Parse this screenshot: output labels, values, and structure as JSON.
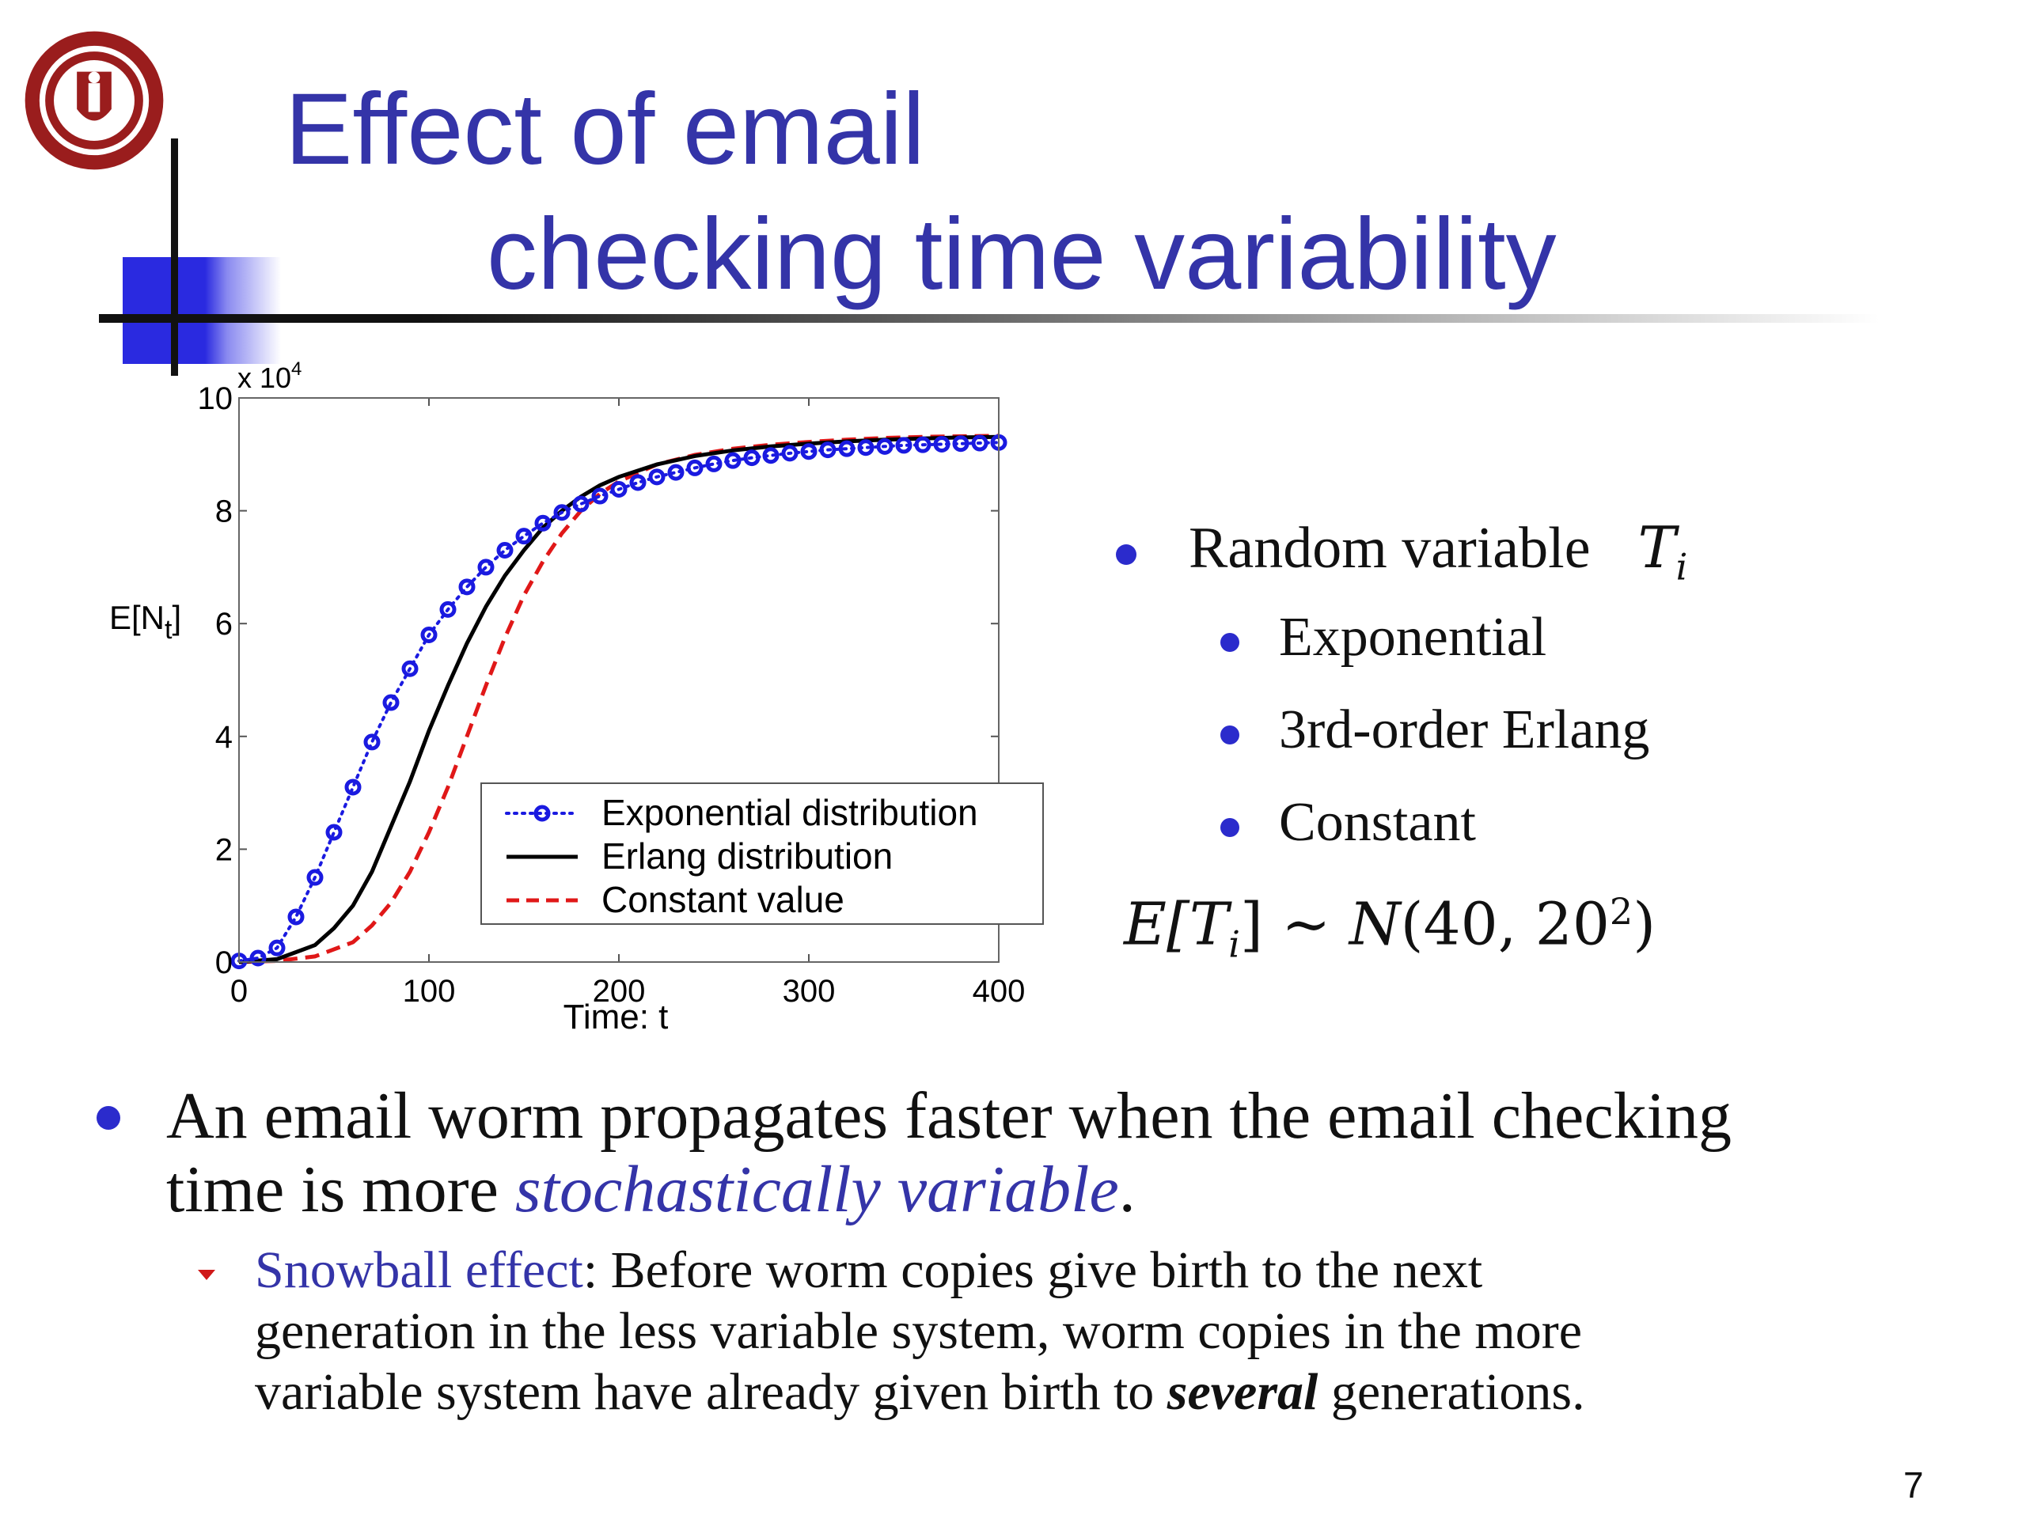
{
  "slide": {
    "title_line1": "Effect of email",
    "title_line2": "checking time variability",
    "page_number": "7"
  },
  "right_panel": {
    "random_variable_label": "Random variable",
    "random_variable_symbol": "T",
    "random_variable_subscript": "i",
    "items": [
      "Exponential",
      "3rd-order Erlang",
      "Constant"
    ],
    "formula": {
      "lhs_E": "E[",
      "lhs_T": "T",
      "lhs_sub": "i",
      "lhs_close": "]",
      "sim": "∼",
      "dist": "N",
      "args": "(40, 20",
      "sup": "2",
      "close": ")"
    }
  },
  "main_bullet": {
    "line1": "An email worm propagates faster when the email checking",
    "line2_prefix": "time is more ",
    "line2_emph": "stochastically variable",
    "line2_suffix": "."
  },
  "sub_bullet": {
    "label": "Snowball effect",
    "line1_rest": ": Before worm copies give birth to the next",
    "line2": "generation in the less variable system, worm copies in the more",
    "line3_prefix": "variable system have already given birth to ",
    "line3_emph": "several",
    "line3_suffix": " generations."
  },
  "colors": {
    "title": "#3434a8",
    "bullet_dot": "#2b2bcc",
    "exponential": "#1a1ae0",
    "erlang": "#000000",
    "constant": "#e01818",
    "sub_marker": "#d01818"
  },
  "chart_data": {
    "type": "line",
    "xlabel": "Time: t",
    "ylabel": "E[N",
    "ylabel_sub": "t",
    "ylabel_close": "]",
    "y_multiplier": "x 10",
    "y_multiplier_exp": "4",
    "xlim": [
      0,
      400
    ],
    "ylim": [
      0,
      10
    ],
    "xticks": [
      0,
      100,
      200,
      300,
      400
    ],
    "yticks": [
      0,
      2,
      4,
      6,
      8,
      10
    ],
    "legend_position": "lower-right",
    "series": [
      {
        "name": "Exponential distribution",
        "style": "dotted-circles",
        "color": "#1a1ae0",
        "x": [
          0,
          10,
          20,
          30,
          40,
          50,
          60,
          70,
          80,
          90,
          100,
          110,
          120,
          130,
          140,
          150,
          160,
          170,
          180,
          190,
          200,
          210,
          220,
          230,
          240,
          250,
          260,
          270,
          280,
          290,
          300,
          310,
          320,
          330,
          340,
          350,
          360,
          370,
          380,
          390,
          400
        ],
        "y": [
          0.02,
          0.07,
          0.25,
          0.8,
          1.5,
          2.3,
          3.1,
          3.9,
          4.6,
          5.2,
          5.8,
          6.25,
          6.65,
          7.0,
          7.3,
          7.55,
          7.78,
          7.97,
          8.12,
          8.26,
          8.38,
          8.5,
          8.6,
          8.68,
          8.76,
          8.83,
          8.89,
          8.94,
          8.98,
          9.02,
          9.05,
          9.08,
          9.1,
          9.12,
          9.14,
          9.16,
          9.17,
          9.18,
          9.19,
          9.2,
          9.21
        ]
      },
      {
        "name": "Erlang distribution",
        "style": "solid",
        "color": "#000000",
        "x": [
          0,
          20,
          40,
          50,
          60,
          70,
          80,
          90,
          100,
          110,
          120,
          130,
          140,
          150,
          160,
          170,
          180,
          190,
          200,
          220,
          240,
          260,
          280,
          300,
          320,
          340,
          360,
          380,
          400
        ],
        "y": [
          0.0,
          0.05,
          0.3,
          0.6,
          1.0,
          1.6,
          2.4,
          3.2,
          4.1,
          4.9,
          5.65,
          6.3,
          6.85,
          7.3,
          7.7,
          8.0,
          8.25,
          8.45,
          8.6,
          8.82,
          8.97,
          9.07,
          9.14,
          9.19,
          9.23,
          9.26,
          9.28,
          9.3,
          9.31
        ]
      },
      {
        "name": "Constant value",
        "style": "dashed",
        "color": "#e01818",
        "x": [
          0,
          20,
          40,
          60,
          70,
          80,
          90,
          100,
          110,
          120,
          130,
          140,
          150,
          160,
          170,
          180,
          190,
          200,
          220,
          240,
          260,
          280,
          300,
          320,
          340,
          360,
          380,
          400
        ],
        "y": [
          0.0,
          0.02,
          0.1,
          0.35,
          0.65,
          1.05,
          1.6,
          2.3,
          3.1,
          4.0,
          4.9,
          5.75,
          6.5,
          7.1,
          7.6,
          8.0,
          8.3,
          8.52,
          8.82,
          8.99,
          9.1,
          9.17,
          9.22,
          9.26,
          9.29,
          9.31,
          9.32,
          9.33
        ]
      }
    ]
  }
}
